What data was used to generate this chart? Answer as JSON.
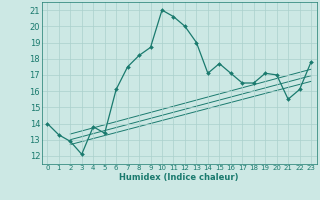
{
  "xlabel": "Humidex (Indice chaleur)",
  "xlim": [
    -0.5,
    23.5
  ],
  "ylim": [
    11.5,
    21.5
  ],
  "yticks": [
    12,
    13,
    14,
    15,
    16,
    17,
    18,
    19,
    20,
    21
  ],
  "xticks": [
    0,
    1,
    2,
    3,
    4,
    5,
    6,
    7,
    8,
    9,
    10,
    11,
    12,
    13,
    14,
    15,
    16,
    17,
    18,
    19,
    20,
    21,
    22,
    23
  ],
  "background_color": "#cce8e4",
  "line_color": "#1a7a6e",
  "grid_color": "#aad0cc",
  "main_line": {
    "x": [
      0,
      1,
      2,
      3,
      4,
      5,
      6,
      7,
      8,
      9,
      10,
      11,
      12,
      13,
      14,
      15,
      16,
      17,
      18,
      19,
      20,
      21,
      22,
      23
    ],
    "y": [
      14.0,
      13.3,
      12.9,
      12.1,
      13.8,
      13.4,
      16.1,
      17.5,
      18.2,
      18.7,
      21.0,
      20.6,
      20.0,
      19.0,
      17.1,
      17.7,
      17.1,
      16.5,
      16.5,
      17.1,
      17.0,
      15.5,
      16.1,
      17.8
    ]
  },
  "regression_lines": [
    {
      "x": [
        2,
        23
      ],
      "y": [
        12.7,
        16.6
      ]
    },
    {
      "x": [
        2,
        23
      ],
      "y": [
        13.0,
        16.95
      ]
    },
    {
      "x": [
        2,
        23
      ],
      "y": [
        13.35,
        17.35
      ]
    }
  ],
  "figsize": [
    3.2,
    2.0
  ],
  "dpi": 100
}
